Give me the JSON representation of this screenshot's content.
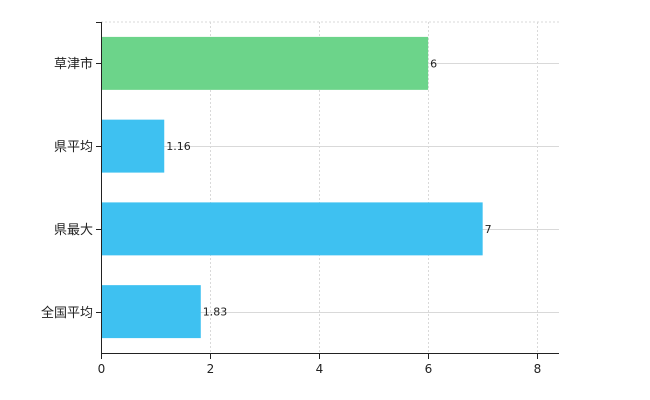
{
  "chart_data": {
    "type": "bar",
    "orientation": "horizontal",
    "categories": [
      "草津市",
      "県平均",
      "県最大",
      "全国平均"
    ],
    "values": [
      6,
      1.16,
      7,
      1.83
    ],
    "value_labels": [
      "6",
      "1.16",
      "7",
      "1.83"
    ],
    "bar_colors": [
      "#6cd48a",
      "#3ec1f1",
      "#3ec1f1",
      "#3ec1f1"
    ],
    "xlim": [
      0,
      8.4
    ],
    "x_ticks": [
      0,
      2,
      4,
      6,
      8
    ],
    "x_tick_labels": [
      "0",
      "2",
      "4",
      "6",
      "8"
    ],
    "grid": true,
    "legend": "none",
    "title": "",
    "xlabel": "",
    "ylabel": ""
  }
}
